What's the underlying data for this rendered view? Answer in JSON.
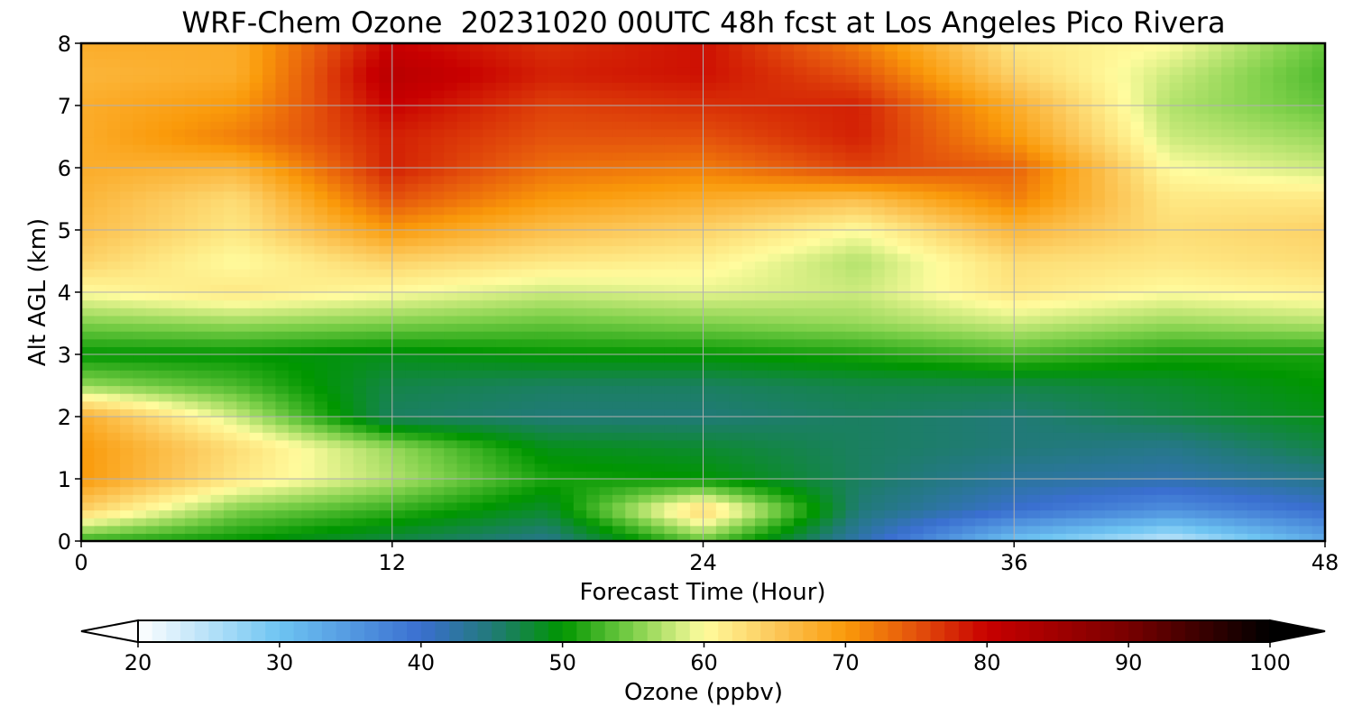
{
  "title": "WRF-Chem Ozone  20231020 00UTC 48h fcst at Los Angeles Pico Rivera",
  "chart_data": {
    "type": "heatmap",
    "title": "WRF-Chem Ozone  20231020 00UTC 48h fcst at Los Angeles Pico Rivera",
    "xlabel": "Forecast Time (Hour)",
    "ylabel": "Alt AGL (km)",
    "xlim": [
      0,
      48
    ],
    "ylim": [
      0,
      8
    ],
    "x_ticks": [
      "0",
      "12",
      "24",
      "36",
      "48"
    ],
    "y_ticks": [
      "0",
      "1",
      "2",
      "3",
      "4",
      "5",
      "6",
      "7",
      "8"
    ],
    "grid": true,
    "x": [
      0,
      6,
      12,
      18,
      24,
      30,
      36,
      42,
      48
    ],
    "y": [
      0,
      0.5,
      1,
      1.5,
      2,
      2.5,
      3,
      3.5,
      4,
      4.5,
      5,
      5.5,
      6,
      6.5,
      7,
      7.5,
      8
    ],
    "z_ozone_ppbv": [
      [
        52,
        50,
        47,
        44,
        54,
        42,
        30,
        24,
        33
      ],
      [
        64,
        55,
        52,
        48,
        64,
        45,
        40,
        36,
        40
      ],
      [
        70,
        62,
        57,
        51,
        50,
        46,
        43,
        42,
        44
      ],
      [
        70,
        63,
        56,
        49,
        48,
        46,
        45,
        44,
        47
      ],
      [
        68,
        58,
        46,
        45,
        45,
        46,
        45,
        47,
        49
      ],
      [
        56,
        53,
        47,
        46,
        46,
        47,
        47,
        48,
        50
      ],
      [
        50,
        50,
        49,
        50,
        50,
        51,
        53,
        51,
        51
      ],
      [
        55,
        56,
        55,
        54,
        55,
        56,
        58,
        56,
        57
      ],
      [
        60,
        62,
        60,
        58,
        59,
        58,
        62,
        60,
        61
      ],
      [
        64,
        60,
        64,
        62,
        61,
        57,
        63,
        62,
        63
      ],
      [
        66,
        62,
        70,
        66,
        64,
        60,
        67,
        63,
        64
      ],
      [
        67,
        63,
        75,
        70,
        68,
        66,
        72,
        62,
        62
      ],
      [
        68,
        67,
        78,
        73,
        72,
        76,
        74,
        60,
        58
      ],
      [
        68,
        72,
        78,
        75,
        75,
        78,
        70,
        58,
        56
      ],
      [
        68,
        70,
        80,
        76,
        77,
        78,
        68,
        57,
        54
      ],
      [
        67,
        68,
        82,
        78,
        79,
        75,
        64,
        58,
        53
      ],
      [
        68,
        68,
        80,
        77,
        79,
        72,
        62,
        60,
        54
      ]
    ],
    "colorbar": {
      "label": "Ozone  (ppbv)",
      "min": 20,
      "max": 100,
      "ticks": [
        "20",
        "30",
        "40",
        "50",
        "60",
        "70",
        "80",
        "90",
        "100"
      ],
      "extend": "both",
      "color_stops": [
        {
          "v": 20,
          "c": "#ffffff"
        },
        {
          "v": 30,
          "c": "#6ec4f2"
        },
        {
          "v": 40,
          "c": "#3a6fd0"
        },
        {
          "v": 45,
          "c": "#217a78"
        },
        {
          "v": 50,
          "c": "#009600"
        },
        {
          "v": 55,
          "c": "#7ed04a"
        },
        {
          "v": 60,
          "c": "#fffc9e"
        },
        {
          "v": 65,
          "c": "#fcc85a"
        },
        {
          "v": 70,
          "c": "#fa9a0a"
        },
        {
          "v": 75,
          "c": "#e4520c"
        },
        {
          "v": 80,
          "c": "#c80000"
        },
        {
          "v": 90,
          "c": "#780000"
        },
        {
          "v": 100,
          "c": "#000000"
        }
      ]
    }
  }
}
